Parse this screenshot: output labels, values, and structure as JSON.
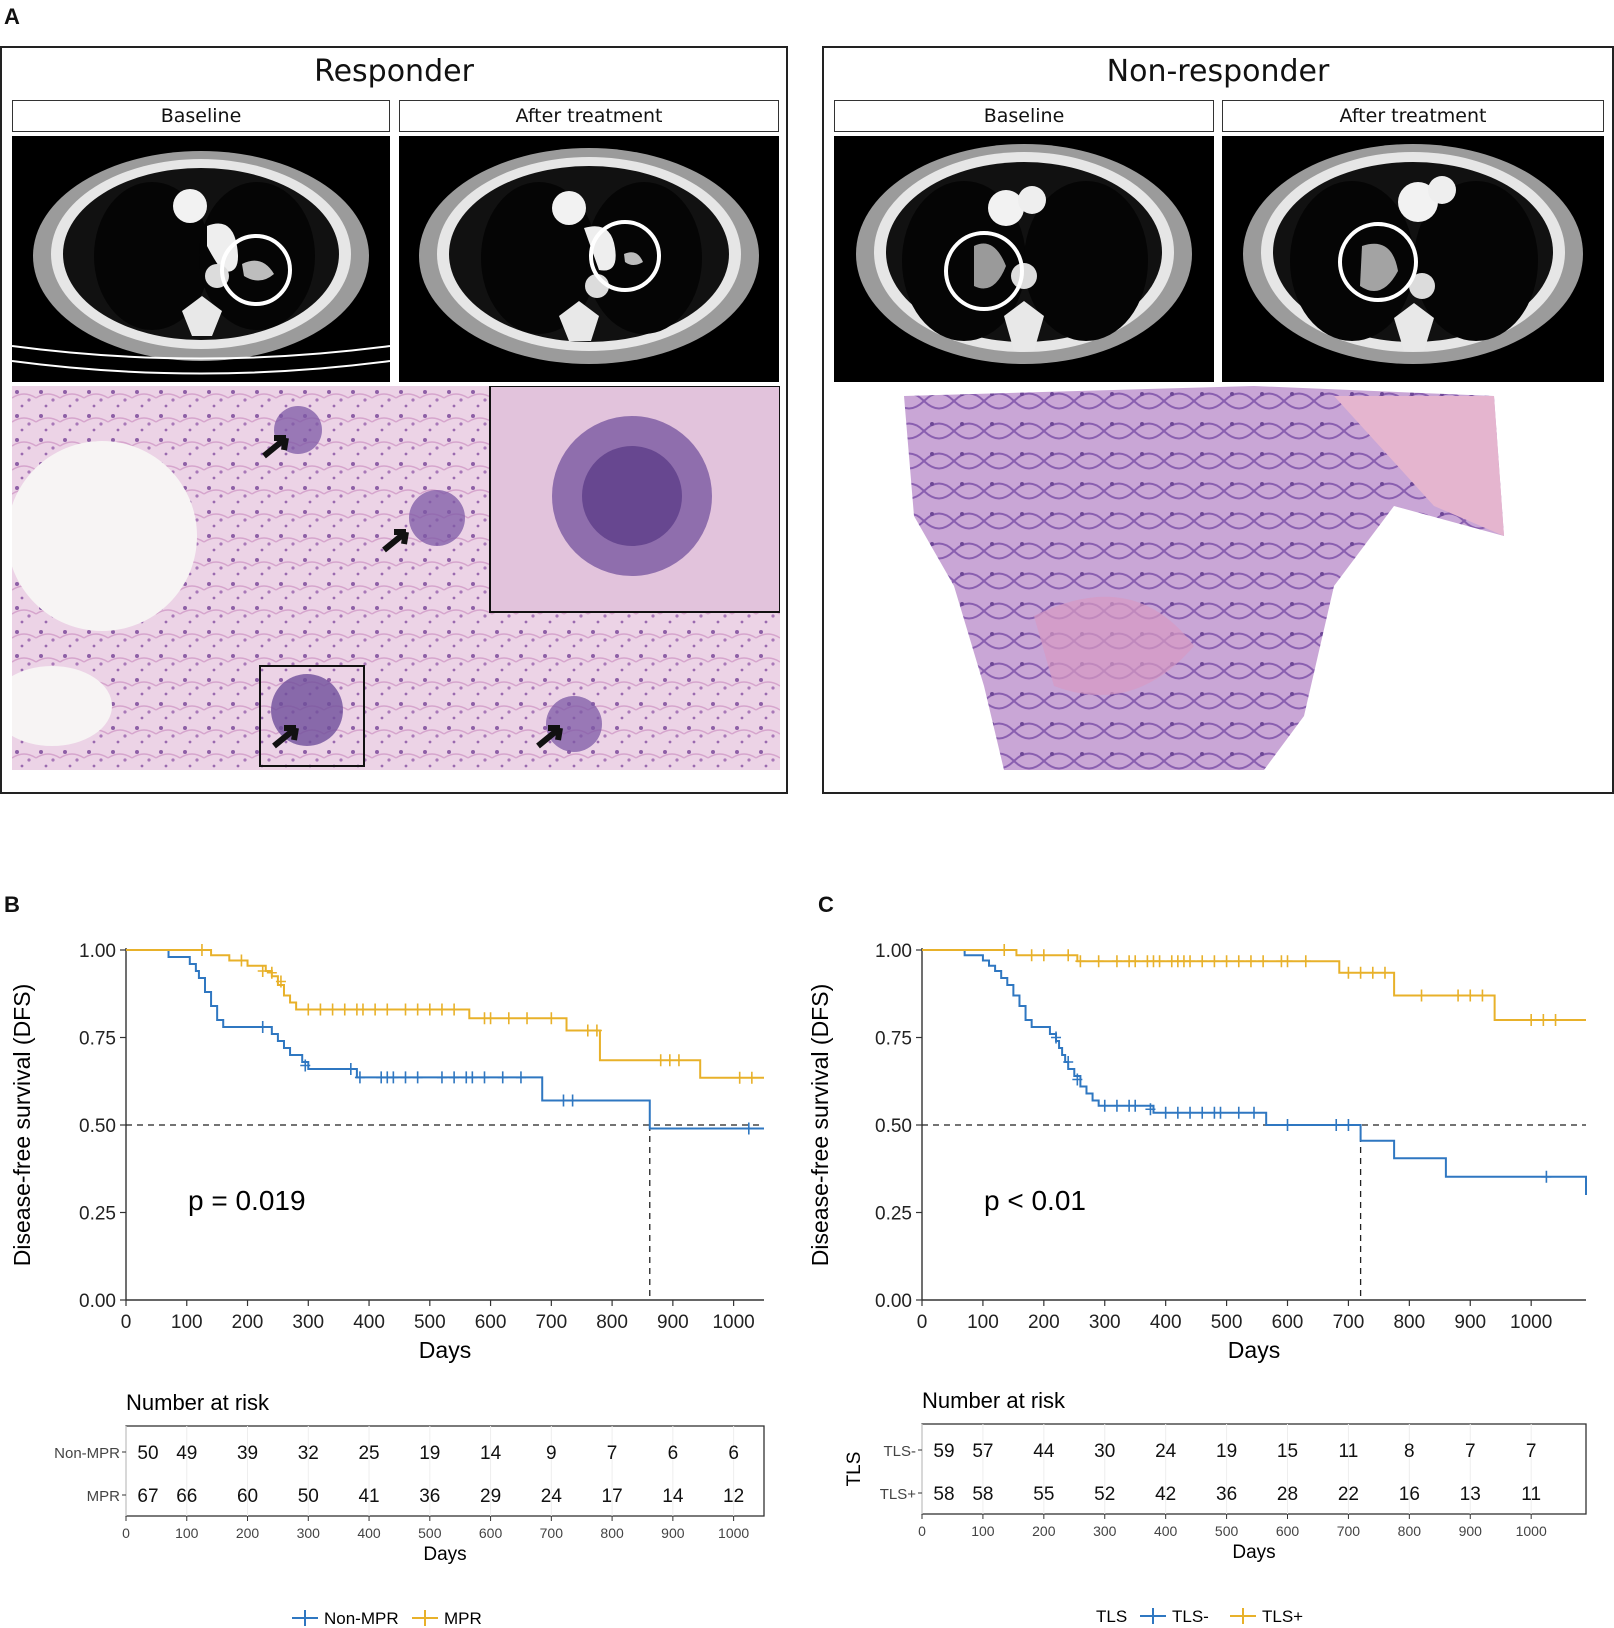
{
  "panel_a": {
    "letter": "A",
    "responder": {
      "title": "Responder",
      "baseline_label": "Baseline",
      "after_label": "After treatment"
    },
    "non_responder": {
      "title": "Non-responder",
      "baseline_label": "Baseline",
      "after_label": "After treatment"
    }
  },
  "chart_data": [
    {
      "panel": "B",
      "type": "line",
      "subtype": "kaplan-meier",
      "ylabel": "Disease-free survival (DFS)",
      "xlabel": "Days",
      "xlim": [
        0,
        1050
      ],
      "ylim": [
        0,
        1
      ],
      "xticks": [
        0,
        100,
        200,
        300,
        400,
        500,
        600,
        700,
        800,
        900,
        1000
      ],
      "yticks": [
        "0.00",
        "0.25",
        "0.50",
        "0.75",
        "1.00"
      ],
      "pvalue": "p = 0.019",
      "median_line_x": 862,
      "colors": {
        "Non-MPR": "#2f77c1",
        "MPR": "#e8b12a"
      },
      "series": [
        {
          "name": "Non-MPR",
          "color": "#2f77c1",
          "steps": [
            [
              0,
              1
            ],
            [
              65,
              1
            ],
            [
              70,
              0.98
            ],
            [
              105,
              0.96
            ],
            [
              115,
              0.94
            ],
            [
              120,
              0.92
            ],
            [
              130,
              0.88
            ],
            [
              140,
              0.84
            ],
            [
              150,
              0.8
            ],
            [
              160,
              0.78
            ],
            [
              200,
              0.78
            ],
            [
              240,
              0.76
            ],
            [
              250,
              0.74
            ],
            [
              260,
              0.72
            ],
            [
              270,
              0.7
            ],
            [
              290,
              0.68
            ],
            [
              300,
              0.66
            ],
            [
              360,
              0.66
            ],
            [
              380,
              0.636
            ],
            [
              680,
              0.636
            ],
            [
              685,
              0.57
            ],
            [
              860,
              0.57
            ],
            [
              862,
              0.49
            ],
            [
              1050,
              0.49
            ]
          ],
          "censors": [
            [
              225,
              0.78
            ],
            [
              295,
              0.67
            ],
            [
              370,
              0.66
            ],
            [
              385,
              0.636
            ],
            [
              420,
              0.636
            ],
            [
              430,
              0.636
            ],
            [
              440,
              0.636
            ],
            [
              460,
              0.636
            ],
            [
              480,
              0.636
            ],
            [
              520,
              0.636
            ],
            [
              540,
              0.636
            ],
            [
              560,
              0.636
            ],
            [
              570,
              0.636
            ],
            [
              590,
              0.636
            ],
            [
              620,
              0.636
            ],
            [
              650,
              0.636
            ],
            [
              720,
              0.57
            ],
            [
              735,
              0.57
            ],
            [
              1025,
              0.49
            ]
          ]
        },
        {
          "name": "MPR",
          "color": "#e8b12a",
          "steps": [
            [
              0,
              1
            ],
            [
              130,
              1
            ],
            [
              140,
              0.985
            ],
            [
              170,
              0.97
            ],
            [
              200,
              0.955
            ],
            [
              230,
              0.94
            ],
            [
              240,
              0.925
            ],
            [
              250,
              0.9
            ],
            [
              260,
              0.87
            ],
            [
              270,
              0.85
            ],
            [
              280,
              0.83
            ],
            [
              555,
              0.83
            ],
            [
              565,
              0.805
            ],
            [
              720,
              0.805
            ],
            [
              725,
              0.77
            ],
            [
              775,
              0.77
            ],
            [
              780,
              0.685
            ],
            [
              940,
              0.685
            ],
            [
              945,
              0.635
            ],
            [
              1050,
              0.635
            ]
          ],
          "censors": [
            [
              125,
              1
            ],
            [
              190,
              0.97
            ],
            [
              225,
              0.94
            ],
            [
              240,
              0.935
            ],
            [
              255,
              0.91
            ],
            [
              300,
              0.83
            ],
            [
              320,
              0.83
            ],
            [
              340,
              0.83
            ],
            [
              360,
              0.83
            ],
            [
              380,
              0.83
            ],
            [
              390,
              0.83
            ],
            [
              410,
              0.83
            ],
            [
              430,
              0.83
            ],
            [
              460,
              0.83
            ],
            [
              480,
              0.83
            ],
            [
              500,
              0.83
            ],
            [
              520,
              0.83
            ],
            [
              540,
              0.83
            ],
            [
              590,
              0.805
            ],
            [
              600,
              0.805
            ],
            [
              630,
              0.805
            ],
            [
              660,
              0.805
            ],
            [
              700,
              0.805
            ],
            [
              760,
              0.77
            ],
            [
              775,
              0.77
            ],
            [
              880,
              0.685
            ],
            [
              895,
              0.685
            ],
            [
              910,
              0.685
            ],
            [
              1010,
              0.635
            ],
            [
              1030,
              0.635
            ]
          ]
        }
      ],
      "risk_table": {
        "title": "Number at risk",
        "xlabel": "Days",
        "strata_title": "",
        "rows": [
          {
            "label": "Non-MPR",
            "color": "#2f77c1",
            "values": [
              "50",
              "49",
              "39",
              "32",
              "25",
              "19",
              "14",
              "9",
              "7",
              "6",
              "6"
            ]
          },
          {
            "label": "MPR",
            "color": "#e8b12a",
            "values": [
              "67",
              "66",
              "60",
              "50",
              "41",
              "36",
              "29",
              "24",
              "17",
              "14",
              "12"
            ]
          }
        ]
      },
      "legend": {
        "title": "",
        "items": [
          "Non-MPR",
          "MPR"
        ]
      }
    },
    {
      "panel": "C",
      "type": "line",
      "subtype": "kaplan-meier",
      "ylabel": "Disease-free survival (DFS)",
      "xlabel": "Days",
      "xlim": [
        0,
        1090
      ],
      "ylim": [
        0,
        1
      ],
      "xticks": [
        0,
        100,
        200,
        300,
        400,
        500,
        600,
        700,
        800,
        900,
        1000
      ],
      "yticks": [
        "0.00",
        "0.25",
        "0.50",
        "0.75",
        "1.00"
      ],
      "pvalue": "p < 0.01",
      "median_line_x": 720,
      "colors": {
        "TLS-": "#2f77c1",
        "TLS+": "#e8b12a"
      },
      "series": [
        {
          "name": "TLS-",
          "color": "#2f77c1",
          "steps": [
            [
              0,
              1
            ],
            [
              60,
              1
            ],
            [
              70,
              0.985
            ],
            [
              100,
              0.97
            ],
            [
              110,
              0.955
            ],
            [
              120,
              0.94
            ],
            [
              130,
              0.92
            ],
            [
              140,
              0.9
            ],
            [
              150,
              0.87
            ],
            [
              160,
              0.84
            ],
            [
              170,
              0.8
            ],
            [
              180,
              0.78
            ],
            [
              200,
              0.78
            ],
            [
              210,
              0.76
            ],
            [
              220,
              0.74
            ],
            [
              225,
              0.72
            ],
            [
              230,
              0.7
            ],
            [
              235,
              0.68
            ],
            [
              240,
              0.66
            ],
            [
              250,
              0.64
            ],
            [
              260,
              0.61
            ],
            [
              270,
              0.59
            ],
            [
              280,
              0.57
            ],
            [
              290,
              0.555
            ],
            [
              370,
              0.555
            ],
            [
              380,
              0.535
            ],
            [
              555,
              0.535
            ],
            [
              565,
              0.5
            ],
            [
              715,
              0.5
            ],
            [
              720,
              0.455
            ],
            [
              770,
              0.455
            ],
            [
              775,
              0.405
            ],
            [
              855,
              0.405
            ],
            [
              860,
              0.352
            ],
            [
              1085,
              0.352
            ],
            [
              1090,
              0.3
            ]
          ],
          "censors": [
            [
              220,
              0.75
            ],
            [
              240,
              0.68
            ],
            [
              255,
              0.63
            ],
            [
              300,
              0.555
            ],
            [
              320,
              0.555
            ],
            [
              340,
              0.555
            ],
            [
              350,
              0.555
            ],
            [
              375,
              0.545
            ],
            [
              400,
              0.535
            ],
            [
              420,
              0.535
            ],
            [
              440,
              0.535
            ],
            [
              460,
              0.535
            ],
            [
              480,
              0.535
            ],
            [
              490,
              0.535
            ],
            [
              520,
              0.535
            ],
            [
              545,
              0.535
            ],
            [
              600,
              0.5
            ],
            [
              680,
              0.5
            ],
            [
              700,
              0.5
            ],
            [
              1025,
              0.352
            ]
          ]
        },
        {
          "name": "TLS+",
          "color": "#e8b12a",
          "steps": [
            [
              0,
              1
            ],
            [
              150,
              1
            ],
            [
              155,
              0.985
            ],
            [
              250,
              0.985
            ],
            [
              255,
              0.968
            ],
            [
              680,
              0.968
            ],
            [
              685,
              0.935
            ],
            [
              770,
              0.935
            ],
            [
              775,
              0.87
            ],
            [
              935,
              0.87
            ],
            [
              940,
              0.8
            ],
            [
              1090,
              0.8
            ]
          ],
          "censors": [
            [
              135,
              1
            ],
            [
              180,
              0.985
            ],
            [
              200,
              0.985
            ],
            [
              240,
              0.985
            ],
            [
              260,
              0.968
            ],
            [
              290,
              0.968
            ],
            [
              320,
              0.968
            ],
            [
              340,
              0.968
            ],
            [
              350,
              0.968
            ],
            [
              370,
              0.968
            ],
            [
              380,
              0.968
            ],
            [
              390,
              0.968
            ],
            [
              410,
              0.968
            ],
            [
              420,
              0.968
            ],
            [
              430,
              0.968
            ],
            [
              440,
              0.968
            ],
            [
              460,
              0.968
            ],
            [
              480,
              0.968
            ],
            [
              500,
              0.968
            ],
            [
              520,
              0.968
            ],
            [
              540,
              0.968
            ],
            [
              560,
              0.968
            ],
            [
              590,
              0.968
            ],
            [
              600,
              0.968
            ],
            [
              630,
              0.968
            ],
            [
              700,
              0.935
            ],
            [
              720,
              0.935
            ],
            [
              740,
              0.935
            ],
            [
              760,
              0.935
            ],
            [
              820,
              0.87
            ],
            [
              880,
              0.87
            ],
            [
              900,
              0.87
            ],
            [
              920,
              0.87
            ],
            [
              1000,
              0.8
            ],
            [
              1020,
              0.8
            ],
            [
              1040,
              0.8
            ]
          ]
        }
      ],
      "risk_table": {
        "title": "Number at risk",
        "xlabel": "Days",
        "strata_title": "TLS",
        "rows": [
          {
            "label": "TLS-",
            "color": "#2f77c1",
            "values": [
              "59",
              "57",
              "44",
              "30",
              "24",
              "19",
              "15",
              "11",
              "8",
              "7",
              "7"
            ]
          },
          {
            "label": "TLS+",
            "color": "#e8b12a",
            "values": [
              "58",
              "58",
              "55",
              "52",
              "42",
              "36",
              "28",
              "22",
              "16",
              "13",
              "11"
            ]
          }
        ]
      },
      "legend": {
        "title": "TLS",
        "items": [
          "TLS-",
          "TLS+"
        ]
      }
    }
  ]
}
